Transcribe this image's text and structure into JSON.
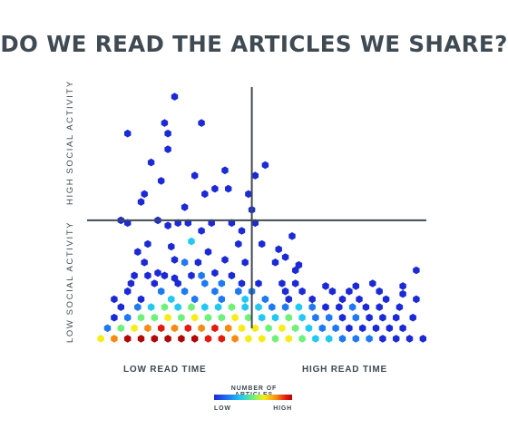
{
  "title": "DO WE READ THE ARTICLES WE SHARE?",
  "chart_data": {
    "type": "heatmap",
    "subtype": "hexbin",
    "y_axis_labels": [
      "HIGH SOCIAL ACTIVITY",
      "LOW SOCIAL ACTIVITY"
    ],
    "x_axis_labels": [
      "LOW READ TIME",
      "HIGH READ TIME"
    ],
    "legend": {
      "title": "NUMBER OF ARTICLES",
      "low_label": "LOW",
      "high_label": "HIGH",
      "colors": [
        "#1c2ad6",
        "#1f79f0",
        "#22c7f2",
        "#6ff07a",
        "#f5ec1a",
        "#f58a14",
        "#e31a10",
        "#b00808"
      ]
    },
    "xlim": [
      0,
      1
    ],
    "ylim": [
      0,
      1
    ],
    "dividers": {
      "x": 0.48,
      "y": 0.49
    },
    "grid": false,
    "note": "axes are unlabeled; values are relative positions in read-time/social-activity space; density: 0=low count, 1=high count",
    "points": [
      [
        0.25,
        0.96,
        0
      ],
      [
        0.22,
        0.86,
        0
      ],
      [
        0.23,
        0.82,
        0
      ],
      [
        0.11,
        0.82,
        0
      ],
      [
        0.33,
        0.86,
        0
      ],
      [
        0.23,
        0.76,
        0
      ],
      [
        0.18,
        0.71,
        0
      ],
      [
        0.52,
        0.7,
        0
      ],
      [
        0.4,
        0.68,
        0
      ],
      [
        0.31,
        0.66,
        0
      ],
      [
        0.49,
        0.66,
        0
      ],
      [
        0.21,
        0.64,
        0
      ],
      [
        0.37,
        0.61,
        0
      ],
      [
        0.41,
        0.61,
        0
      ],
      [
        0.47,
        0.59,
        0
      ],
      [
        0.16,
        0.59,
        0
      ],
      [
        0.34,
        0.59,
        0
      ],
      [
        0.15,
        0.56,
        0
      ],
      [
        0.28,
        0.54,
        0
      ],
      [
        0.48,
        0.53,
        0
      ],
      [
        0.09,
        0.49,
        0
      ],
      [
        0.2,
        0.49,
        0
      ],
      [
        0.29,
        0.48,
        0
      ],
      [
        0.36,
        0.48,
        0
      ],
      [
        0.49,
        0.48,
        0
      ],
      [
        0.11,
        0.48,
        0
      ],
      [
        0.26,
        0.48,
        0
      ],
      [
        0.42,
        0.48,
        0
      ],
      [
        0.23,
        0.47,
        0
      ],
      [
        0.33,
        0.45,
        0
      ],
      [
        0.45,
        0.45,
        0
      ],
      [
        0.6,
        0.43,
        0
      ],
      [
        0.3,
        0.41,
        2
      ],
      [
        0.17,
        0.4,
        0
      ],
      [
        0.44,
        0.4,
        0
      ],
      [
        0.51,
        0.4,
        0
      ],
      [
        0.56,
        0.38,
        0
      ],
      [
        0.24,
        0.39,
        0
      ],
      [
        0.35,
        0.37,
        0
      ],
      [
        0.14,
        0.37,
        0
      ],
      [
        0.58,
        0.35,
        0
      ],
      [
        0.16,
        0.33,
        0
      ],
      [
        0.25,
        0.34,
        0
      ],
      [
        0.32,
        0.33,
        0
      ],
      [
        0.4,
        0.34,
        0
      ],
      [
        0.28,
        0.33,
        1
      ],
      [
        0.46,
        0.33,
        0
      ],
      [
        0.55,
        0.33,
        0
      ],
      [
        0.62,
        0.32,
        0
      ],
      [
        0.61,
        0.3,
        0
      ],
      [
        0.97,
        0.3,
        0
      ],
      [
        0.2,
        0.29,
        0
      ],
      [
        0.22,
        0.28,
        0
      ],
      [
        0.37,
        0.29,
        0
      ],
      [
        0.13,
        0.28,
        0
      ],
      [
        0.17,
        0.28,
        0
      ],
      [
        0.42,
        0.28,
        0
      ],
      [
        0.3,
        0.28,
        0
      ],
      [
        0.25,
        0.27,
        0
      ],
      [
        0.33,
        0.28,
        1
      ],
      [
        0.12,
        0.25,
        0
      ],
      [
        0.19,
        0.25,
        0
      ],
      [
        0.26,
        0.25,
        0
      ],
      [
        0.34,
        0.25,
        1
      ],
      [
        0.39,
        0.25,
        1
      ],
      [
        0.45,
        0.25,
        0
      ],
      [
        0.5,
        0.25,
        0
      ],
      [
        0.57,
        0.25,
        0
      ],
      [
        0.61,
        0.25,
        0
      ],
      [
        0.7,
        0.24,
        0
      ],
      [
        0.79,
        0.24,
        0
      ],
      [
        0.84,
        0.25,
        0
      ],
      [
        0.93,
        0.24,
        0
      ],
      [
        0.11,
        0.22,
        0
      ],
      [
        0.21,
        0.22,
        1
      ],
      [
        0.28,
        0.22,
        1
      ],
      [
        0.37,
        0.22,
        1
      ],
      [
        0.44,
        0.22,
        1
      ],
      [
        0.48,
        0.22,
        1
      ],
      [
        0.58,
        0.22,
        0
      ],
      [
        0.63,
        0.22,
        0
      ],
      [
        0.72,
        0.22,
        0
      ],
      [
        0.77,
        0.22,
        0
      ],
      [
        0.86,
        0.22,
        0
      ],
      [
        0.93,
        0.21,
        0
      ],
      [
        0.07,
        0.19,
        0
      ],
      [
        0.15,
        0.19,
        0
      ],
      [
        0.24,
        0.19,
        2
      ],
      [
        0.31,
        0.19,
        1
      ],
      [
        0.39,
        0.19,
        1
      ],
      [
        0.46,
        0.19,
        2
      ],
      [
        0.52,
        0.19,
        1
      ],
      [
        0.59,
        0.19,
        0
      ],
      [
        0.66,
        0.19,
        0
      ],
      [
        0.75,
        0.19,
        0
      ],
      [
        0.8,
        0.19,
        0
      ],
      [
        0.88,
        0.19,
        0
      ],
      [
        0.97,
        0.19,
        0
      ],
      [
        0.09,
        0.16,
        0
      ],
      [
        0.14,
        0.16,
        1
      ],
      [
        0.18,
        0.16,
        2
      ],
      [
        0.22,
        0.16,
        3
      ],
      [
        0.26,
        0.16,
        2
      ],
      [
        0.3,
        0.16,
        3
      ],
      [
        0.34,
        0.16,
        2
      ],
      [
        0.38,
        0.16,
        2
      ],
      [
        0.42,
        0.16,
        3
      ],
      [
        0.46,
        0.16,
        2
      ],
      [
        0.5,
        0.16,
        2
      ],
      [
        0.54,
        0.16,
        1
      ],
      [
        0.58,
        0.16,
        1
      ],
      [
        0.62,
        0.16,
        2
      ],
      [
        0.66,
        0.16,
        1
      ],
      [
        0.7,
        0.16,
        0
      ],
      [
        0.74,
        0.16,
        0
      ],
      [
        0.78,
        0.16,
        1
      ],
      [
        0.82,
        0.16,
        0
      ],
      [
        0.86,
        0.16,
        0
      ],
      [
        0.92,
        0.16,
        0
      ],
      [
        0.07,
        0.12,
        0
      ],
      [
        0.11,
        0.12,
        1
      ],
      [
        0.15,
        0.12,
        3
      ],
      [
        0.19,
        0.12,
        3
      ],
      [
        0.23,
        0.12,
        4
      ],
      [
        0.27,
        0.12,
        3
      ],
      [
        0.31,
        0.12,
        4
      ],
      [
        0.35,
        0.12,
        3
      ],
      [
        0.39,
        0.12,
        3
      ],
      [
        0.43,
        0.12,
        4
      ],
      [
        0.47,
        0.12,
        3
      ],
      [
        0.51,
        0.12,
        2
      ],
      [
        0.55,
        0.12,
        2
      ],
      [
        0.59,
        0.12,
        3
      ],
      [
        0.63,
        0.12,
        2
      ],
      [
        0.67,
        0.12,
        1
      ],
      [
        0.71,
        0.12,
        1
      ],
      [
        0.75,
        0.12,
        0
      ],
      [
        0.79,
        0.12,
        1
      ],
      [
        0.83,
        0.12,
        0
      ],
      [
        0.87,
        0.12,
        0
      ],
      [
        0.91,
        0.12,
        0
      ],
      [
        0.96,
        0.12,
        0
      ],
      [
        0.05,
        0.08,
        1
      ],
      [
        0.09,
        0.08,
        3
      ],
      [
        0.13,
        0.08,
        4
      ],
      [
        0.17,
        0.08,
        5
      ],
      [
        0.21,
        0.08,
        6
      ],
      [
        0.25,
        0.08,
        5
      ],
      [
        0.29,
        0.08,
        6
      ],
      [
        0.33,
        0.08,
        5
      ],
      [
        0.37,
        0.08,
        6
      ],
      [
        0.41,
        0.08,
        5
      ],
      [
        0.45,
        0.08,
        4
      ],
      [
        0.49,
        0.08,
        4
      ],
      [
        0.53,
        0.08,
        3
      ],
      [
        0.57,
        0.08,
        4
      ],
      [
        0.61,
        0.08,
        3
      ],
      [
        0.65,
        0.08,
        2
      ],
      [
        0.69,
        0.08,
        1
      ],
      [
        0.73,
        0.08,
        1
      ],
      [
        0.77,
        0.08,
        0
      ],
      [
        0.81,
        0.08,
        0
      ],
      [
        0.85,
        0.08,
        0
      ],
      [
        0.89,
        0.08,
        0
      ],
      [
        0.93,
        0.08,
        0
      ],
      [
        0.03,
        0.04,
        4
      ],
      [
        0.07,
        0.04,
        5
      ],
      [
        0.11,
        0.04,
        7
      ],
      [
        0.15,
        0.04,
        7
      ],
      [
        0.19,
        0.04,
        7
      ],
      [
        0.23,
        0.04,
        7
      ],
      [
        0.27,
        0.04,
        7
      ],
      [
        0.31,
        0.04,
        7
      ],
      [
        0.35,
        0.04,
        6
      ],
      [
        0.39,
        0.04,
        6
      ],
      [
        0.43,
        0.04,
        5
      ],
      [
        0.47,
        0.04,
        4
      ],
      [
        0.51,
        0.04,
        4
      ],
      [
        0.55,
        0.04,
        3
      ],
      [
        0.59,
        0.04,
        4
      ],
      [
        0.63,
        0.04,
        3
      ],
      [
        0.67,
        0.04,
        2
      ],
      [
        0.71,
        0.04,
        2
      ],
      [
        0.75,
        0.04,
        1
      ],
      [
        0.79,
        0.04,
        1
      ],
      [
        0.83,
        0.04,
        1
      ],
      [
        0.87,
        0.04,
        0
      ],
      [
        0.91,
        0.04,
        0
      ],
      [
        0.95,
        0.04,
        0
      ],
      [
        0.99,
        0.04,
        0
      ]
    ]
  }
}
